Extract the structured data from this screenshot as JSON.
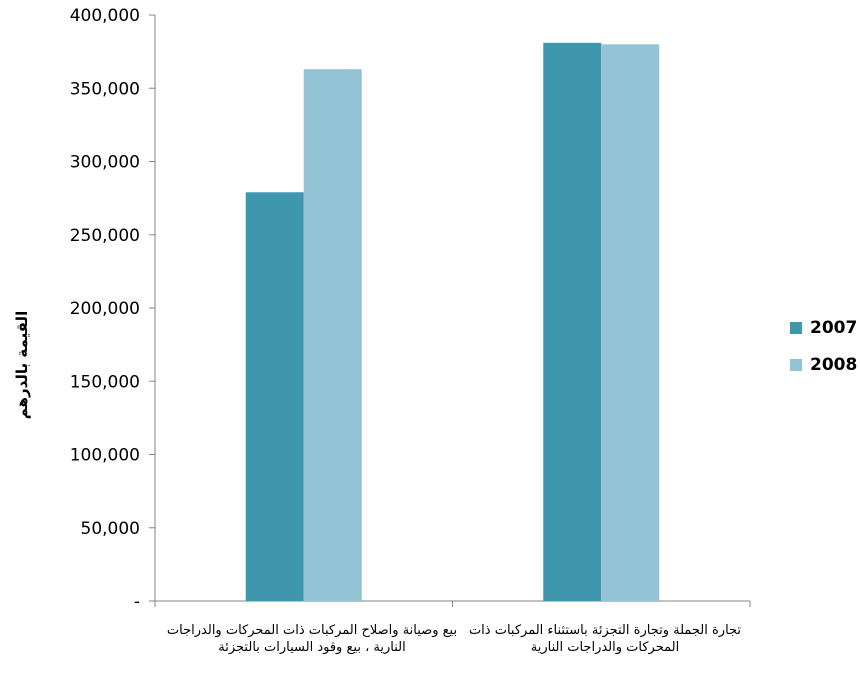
{
  "chart_data": {
    "type": "bar",
    "title": "",
    "xlabel": "",
    "ylabel": "القيمة بالدرهم",
    "categories": [
      "بيع وصيانة واصلاح المركبات ذات المحركات والدراجات النارية ، بيع وقود السيارات بالتجزئة",
      "تجارة الجملة وتجارة التجزئة باستثناء المركبات ذات المحركات والدراجات النارية"
    ],
    "series": [
      {
        "name": "2007",
        "color": "#3E97AD",
        "values": [
          279000,
          381000
        ]
      },
      {
        "name": "2008",
        "color": "#93C4D5",
        "values": [
          363000,
          380000
        ]
      }
    ],
    "ylim": [
      0,
      400000
    ],
    "yticks": [
      0,
      50000,
      100000,
      150000,
      200000,
      250000,
      300000,
      350000,
      400000
    ],
    "ytick_labels": [
      "-",
      "50,000",
      "100,000",
      "150,000",
      "200,000",
      "250,000",
      "300,000",
      "350,000",
      "400,000"
    ],
    "legend_position": "right",
    "grid": false
  }
}
